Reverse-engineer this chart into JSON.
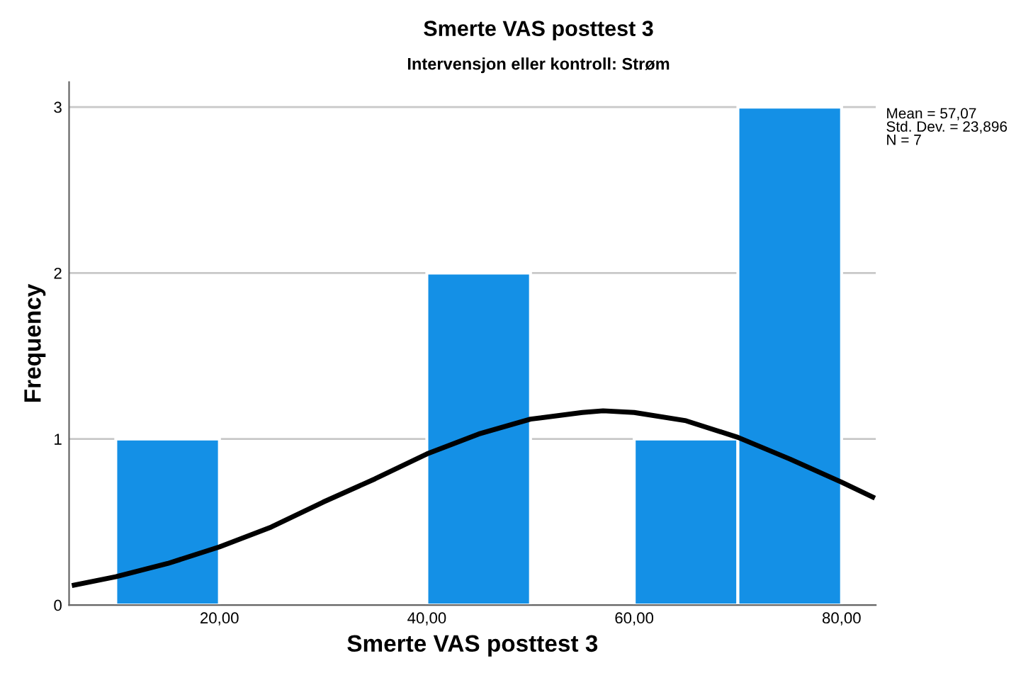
{
  "chart_data": {
    "type": "histogram",
    "title": "Smerte VAS posttest 3",
    "subtitle": "Intervensjon eller kontroll: Strøm",
    "xlabel": "Smerte VAS posttest 3",
    "ylabel": "Frequency",
    "bins": [
      10,
      20,
      30,
      40,
      50,
      60,
      70,
      80
    ],
    "values": [
      1,
      0,
      0,
      2,
      0,
      1,
      3
    ],
    "color": "#1490e6",
    "series": [
      {
        "type": "line",
        "color": "#000000",
        "x": [
          6,
          10,
          15,
          20,
          25,
          30,
          35,
          40,
          45,
          50,
          55,
          57,
          60,
          65,
          70,
          75,
          80,
          83
        ],
        "values": [
          0.12,
          0.17,
          0.25,
          0.35,
          0.47,
          0.62,
          0.76,
          0.91,
          1.03,
          1.12,
          1.16,
          1.17,
          1.16,
          1.11,
          1.01,
          0.88,
          0.74,
          0.65
        ]
      }
    ],
    "xlim": [
      5.5,
      83.3
    ],
    "ylim": [
      0,
      3.15
    ],
    "xticks": [
      {
        "value": 20,
        "label": "20,00"
      },
      {
        "value": 40,
        "label": "40,00"
      },
      {
        "value": 60,
        "label": "60,00"
      },
      {
        "value": 80,
        "label": "80,00"
      }
    ],
    "yticks": [
      0,
      1,
      2,
      3
    ],
    "grid": "y",
    "annotations": [
      "Mean = 57,07\nStd. Dev. = 23,896\nN = 7"
    ]
  }
}
